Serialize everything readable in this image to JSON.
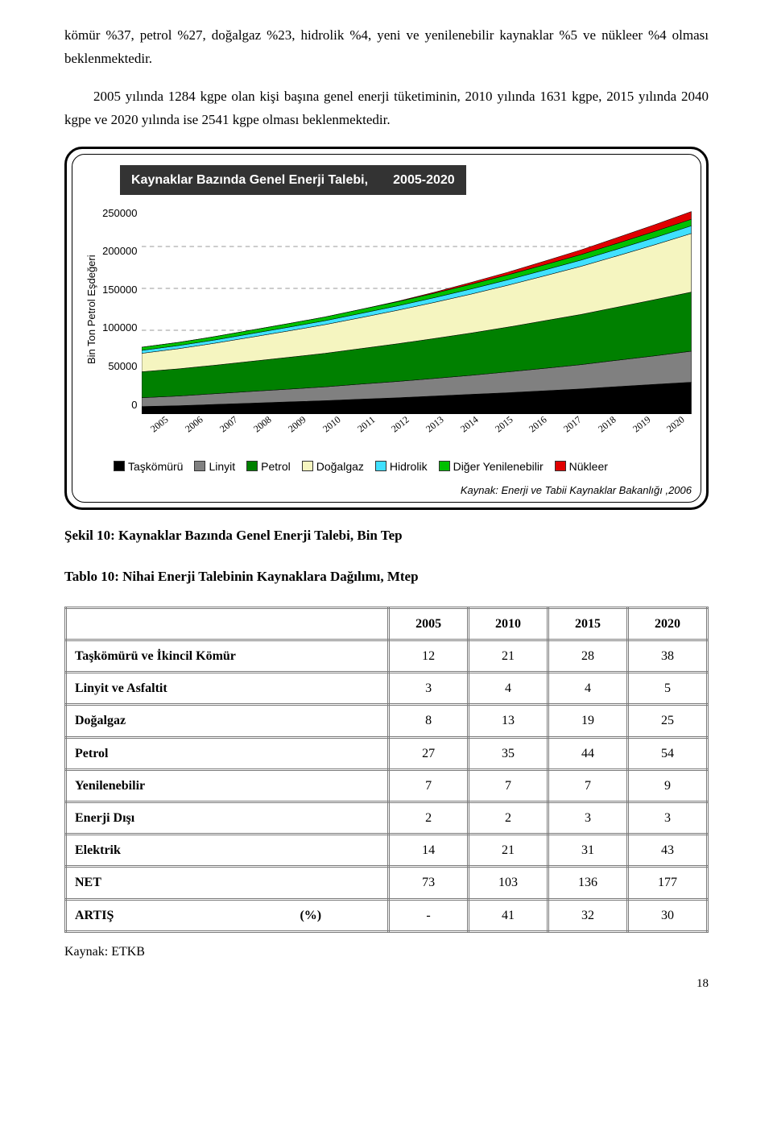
{
  "para1": "kömür %37, petrol %27, doğalgaz %23, hidrolik %4, yeni ve yenilenebilir kaynaklar %5 ve nükleer %4 olması beklenmektedir.",
  "para2": "2005 yılında 1284 kgpe olan kişi başına genel enerji tüketiminin, 2010 yılında 1631 kgpe, 2015 yılında 2040 kgpe ve 2020 yılında ise 2541 kgpe olması beklenmektedir.",
  "chart": {
    "type": "area",
    "title": "Kaynaklar Bazında Genel Enerji Talebi,       2005-2020",
    "ylabel": "Bin Ton Petrol Eşdeğeri",
    "ylim": [
      0,
      250000
    ],
    "ytick_step": 50000,
    "yticks": [
      "250000",
      "200000",
      "150000",
      "100000",
      "50000",
      "0"
    ],
    "grid_color": "#9a9a9a",
    "background_color": "#ffffff",
    "categories": [
      "2005",
      "2006",
      "2007",
      "2008",
      "2009",
      "2010",
      "2011",
      "2012",
      "2013",
      "2014",
      "2015",
      "2016",
      "2017",
      "2018",
      "2019",
      "2020"
    ],
    "series": [
      {
        "name": "Taşkömürü",
        "color": "#000000",
        "values": [
          9000,
          10000,
          11500,
          13000,
          14500,
          16000,
          17800,
          19500,
          21500,
          23500,
          25500,
          27800,
          30000,
          32800,
          35500,
          38000
        ]
      },
      {
        "name": "Linyit",
        "color": "#808080",
        "values": [
          10500,
          11500,
          12800,
          14000,
          15200,
          16500,
          18000,
          19500,
          21000,
          22800,
          24800,
          26800,
          29000,
          31500,
          34000,
          37000
        ]
      },
      {
        "name": "Petrol",
        "color": "#008000",
        "values": [
          31000,
          32500,
          34000,
          36000,
          38000,
          40000,
          42500,
          45000,
          47800,
          50500,
          53500,
          56800,
          60000,
          63500,
          67000,
          70500
        ]
      },
      {
        "name": "Doğalgaz",
        "color": "#f5f5c0",
        "values": [
          22000,
          24000,
          26300,
          28800,
          31500,
          34200,
          37000,
          40000,
          43100,
          46500,
          50000,
          53600,
          57400,
          61300,
          65500,
          70000
        ]
      },
      {
        "name": "Hidrolik",
        "color": "#40e0ff",
        "values": [
          3500,
          3700,
          3900,
          4200,
          4400,
          4700,
          5000,
          5300,
          5700,
          6100,
          6500,
          7000,
          7500,
          8000,
          8600,
          9200
        ]
      },
      {
        "name": "Diğer Yenilenebilir",
        "color": "#00c000",
        "values": [
          3800,
          3900,
          4000,
          4200,
          4300,
          4500,
          4800,
          5000,
          5300,
          5600,
          5900,
          6200,
          6600,
          7000,
          7400,
          7800
        ]
      },
      {
        "name": "Nükleer",
        "color": "#e00000",
        "values": [
          0,
          0,
          0,
          0,
          0,
          0,
          0,
          500,
          1200,
          2200,
          3200,
          4400,
          5600,
          6800,
          8000,
          9200
        ]
      }
    ],
    "source": "Kaynak: Enerji ve Tabii Kaynaklar Bakanlığı ,2006"
  },
  "figure_caption": "Şekil 10: Kaynaklar Bazında Genel Enerji Talebi, Bin Tep",
  "table_caption": "Tablo 10: Nihai Enerji Talebinin Kaynaklara Dağılımı, Mtep",
  "table": {
    "headers": [
      "",
      "2005",
      "2010",
      "2015",
      "2020"
    ],
    "rows": [
      {
        "label": "Taşkömürü  ve İkincil Kömür",
        "cells": [
          "12",
          "21",
          "28",
          "38"
        ]
      },
      {
        "label": "Linyit ve Asfaltit",
        "cells": [
          "3",
          "4",
          "4",
          "5"
        ]
      },
      {
        "label": "Doğalgaz",
        "cells": [
          "8",
          "13",
          "19",
          "25"
        ]
      },
      {
        "label": "Petrol",
        "cells": [
          "27",
          "35",
          "44",
          "54"
        ]
      },
      {
        "label": "Yenilenebilir",
        "cells": [
          "7",
          "7",
          "7",
          "9"
        ]
      },
      {
        "label": "Enerji Dışı",
        "cells": [
          "2",
          "2",
          "3",
          "3"
        ]
      },
      {
        "label": "Elektrik",
        "cells": [
          "14",
          "21",
          "31",
          "43"
        ]
      },
      {
        "label": "NET",
        "cells": [
          "73",
          "103",
          "136",
          "177"
        ]
      },
      {
        "label": "ARTIŞ",
        "pct": "(%)",
        "cells": [
          "-",
          "41",
          "32",
          "30"
        ]
      }
    ]
  },
  "source_bottom": "Kaynak: ETKB",
  "page_num": "18"
}
